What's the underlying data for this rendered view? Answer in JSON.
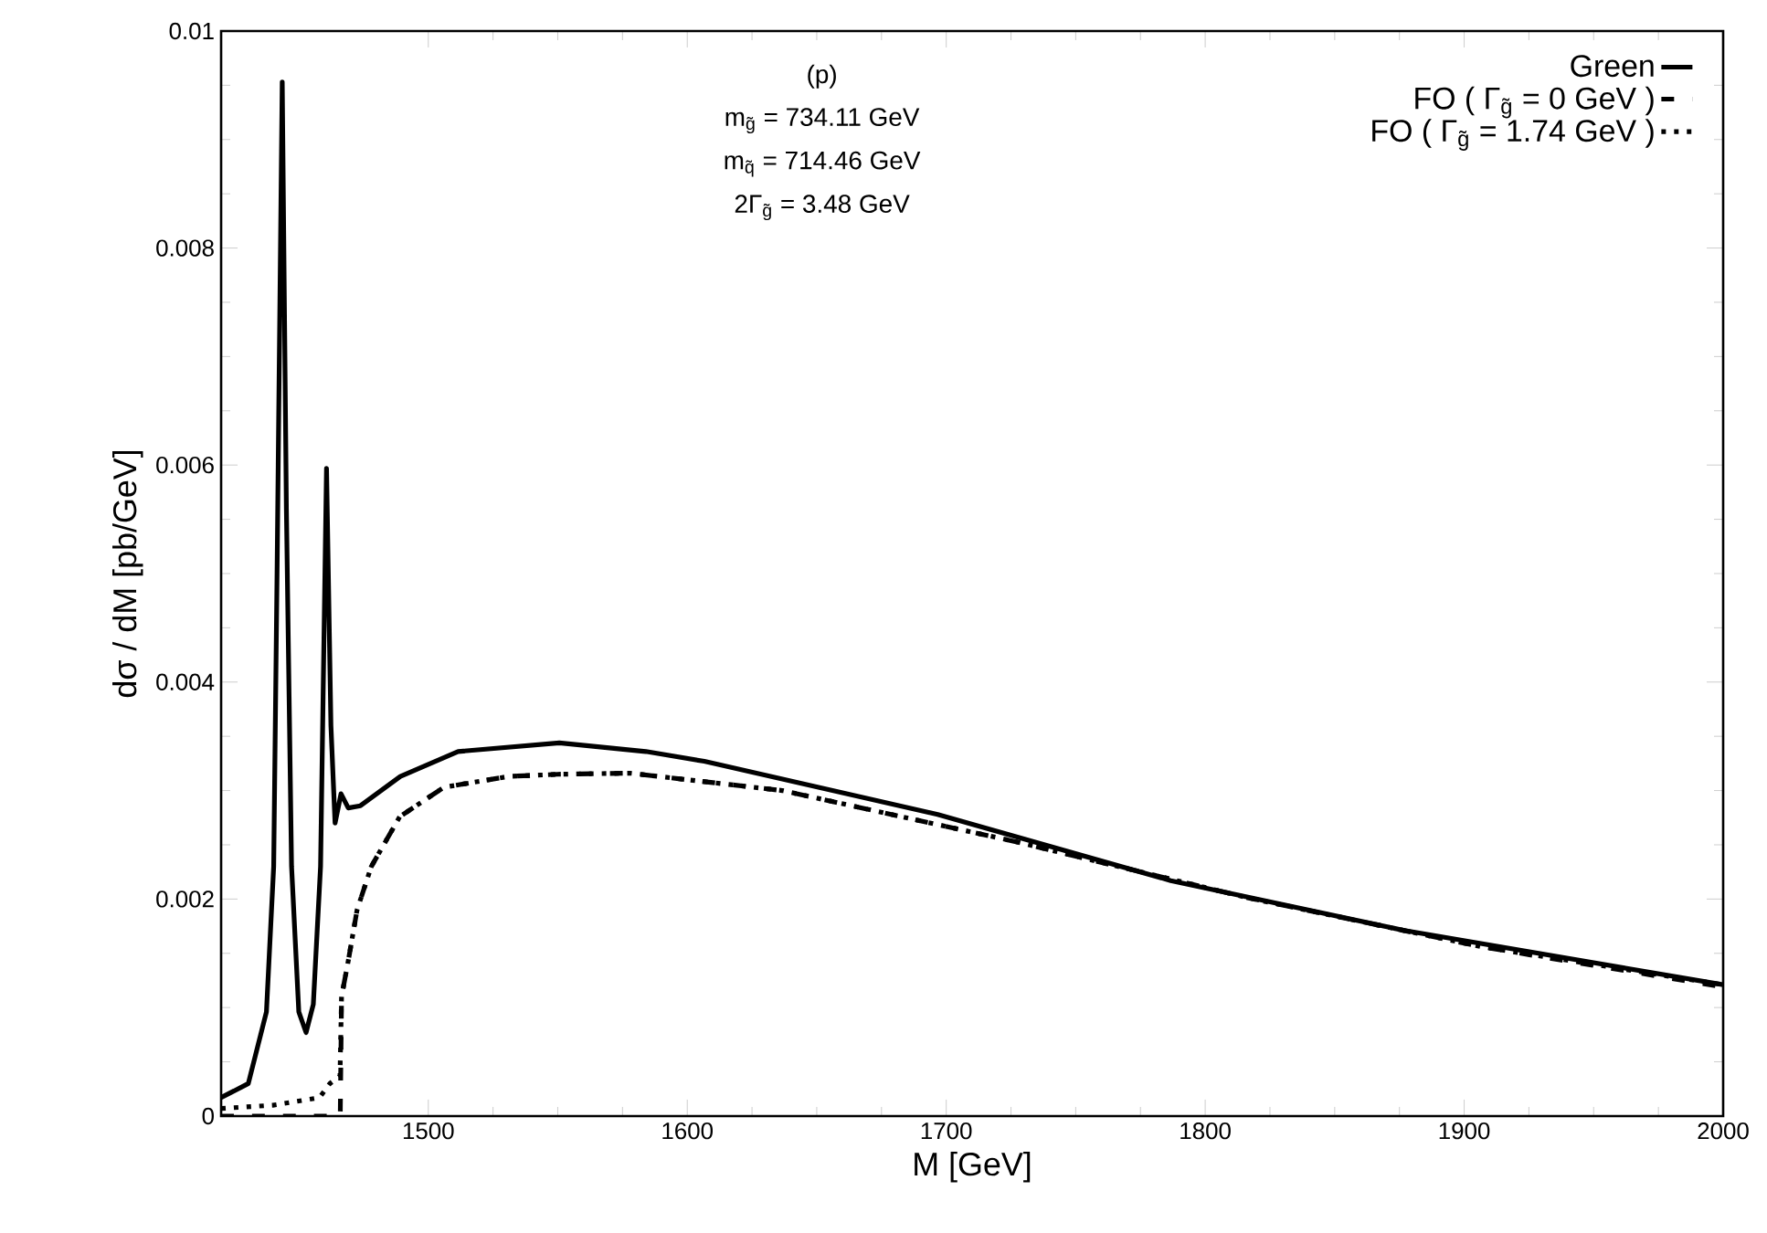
{
  "chart_data": {
    "type": "line",
    "xlabel": "M [GeV]",
    "ylabel": "dσ / dM [pb/GeV]",
    "annotations": [
      "(p)",
      "m$_{g̃}$ = 734.11 GeV",
      "m$_{q̃}$ = 714.46 GeV",
      "2Γ$_{g̃}$ = 3.48 GeV"
    ],
    "xlim": [
      1420,
      2000
    ],
    "ylim": [
      0,
      0.01
    ],
    "xticks": [
      1500,
      1600,
      1700,
      1800,
      1900,
      2000
    ],
    "yticks": [
      0,
      0.002,
      0.004,
      0.006,
      0.008,
      0.01
    ],
    "legend": "top right",
    "series": [
      {
        "name": "Green",
        "color": "#000000",
        "line_style": "solid",
        "x": [
          1420,
          1430.5,
          1437.5,
          1440.3,
          1441.6,
          1443.6,
          1445.2,
          1447.2,
          1450,
          1452.8,
          1455.6,
          1458.4,
          1460.7,
          1462.4,
          1464,
          1466.3,
          1469.1,
          1473.8,
          1489.2,
          1511.5,
          1550.6,
          1584,
          1606.6,
          1696.7,
          1786.7,
          1876.9,
          2000
        ],
        "values": [
          0.00017,
          0.0003,
          0.00096,
          0.0023,
          0.005,
          0.00953,
          0.0056,
          0.0023,
          0.00096,
          0.00077,
          0.00103,
          0.0023,
          0.00597,
          0.0036,
          0.0027,
          0.00297,
          0.00284,
          0.00286,
          0.00313,
          0.00336,
          0.00344,
          0.00336,
          0.00327,
          0.00278,
          0.00217,
          0.00171,
          0.00121
        ]
      },
      {
        "name": "FO ( Γ$_{g̃}$ = 0 GeV )",
        "color": "#000000",
        "line_style": "dashed",
        "x": [
          1420,
          1466,
          1466.5,
          1469.1,
          1472.5,
          1478,
          1489,
          1506,
          1531,
          1550,
          1578,
          1636.7,
          1726.6,
          1816.8,
          1906.7,
          2000
        ],
        "values": [
          0,
          0,
          0.0011,
          0.00143,
          0.0019,
          0.0023,
          0.00276,
          0.00303,
          0.00313,
          0.00315,
          0.00316,
          0.003,
          0.00253,
          0.00201,
          0.00156,
          0.00119
        ]
      },
      {
        "name": "FO ( Γ$_{g̃}$ = 1.74 GeV )",
        "color": "#000000",
        "line_style": "dotted",
        "x": [
          1420,
          1440,
          1458,
          1462,
          1465.9,
          1466.5,
          1469.1,
          1472.5,
          1478,
          1489,
          1506,
          1531,
          1550,
          1578,
          1636.7,
          1726.6,
          1816.8,
          1906.7,
          2000
        ],
        "values": [
          7e-05,
          0.0001,
          0.00017,
          0.0003,
          0.00037,
          0.0011,
          0.00143,
          0.0019,
          0.0023,
          0.00276,
          0.00303,
          0.00313,
          0.00315,
          0.00316,
          0.003,
          0.00253,
          0.00201,
          0.00156,
          0.00121
        ]
      }
    ]
  }
}
